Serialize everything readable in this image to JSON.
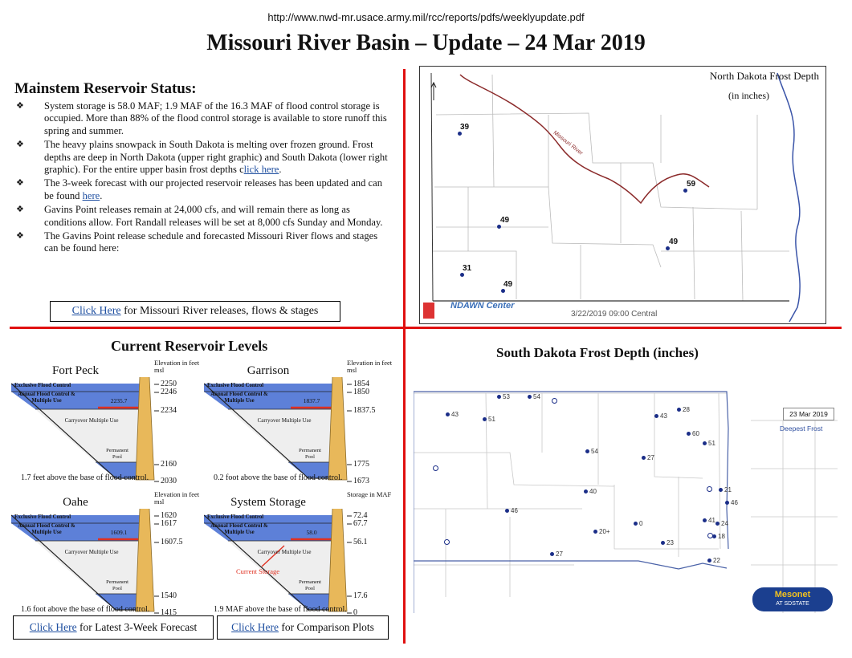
{
  "header": {
    "url": "http://www.nwd-mr.usace.army.mil/rcc/reports/pdfs/weeklyupdate.pdf",
    "title": "Missouri River Basin – Update – 24 Mar 2019"
  },
  "status": {
    "heading": "Mainstem Reservoir Status:",
    "bullets": [
      {
        "text": "System storage is 58.0 MAF; 1.9 MAF of the 16.3 MAF of flood control storage is occupied. More than 88% of the flood control storage is available to store runoff this spring and summer."
      },
      {
        "pre": "The heavy plains snowpack in South Dakota is melting over frozen ground.  Frost depths are deep in North Dakota (upper right graphic) and  South Dakota (lower right graphic).  For the entire upper basin frost depths c",
        "link": "lick here",
        "post": "."
      },
      {
        "pre": "The 3-week forecast with our projected reservoir releases has been updated and can be found ",
        "link": "here",
        "post": "."
      },
      {
        "text": "Gavins Point releases remain at 24,000 cfs, and will remain there as long as conditions allow. Fort Randall releases will be set at 8,000 cfs Sunday and Monday."
      },
      {
        "text": "The Gavins Point release schedule and forecasted Missouri River flows and stages can be found here:"
      }
    ],
    "releases_link": "Click Here",
    "releases_text": " for Missouri River releases, flows & stages"
  },
  "nd_map": {
    "title": "North Dakota Frost Depth",
    "subtitle": "(in inches)",
    "river": "Missouri River",
    "footer": "3/22/2019 09:00 Central",
    "logo": "NDAWN Center",
    "points": [
      "39",
      "59",
      "49",
      "49",
      "31",
      "49"
    ]
  },
  "levels": {
    "heading": "Current Reservoir Levels",
    "zones": {
      "excl": "Exclusive Flood Control",
      "annual": "Annual Flood Control & Multiple Use",
      "carry": "Carryover Multiple Use",
      "perm": "Permanent Pool",
      "current": "Current Storage"
    },
    "reservoirs": [
      {
        "name": "Fort Peck",
        "unit": "Elevation in feet msl",
        "ticks": [
          "2250",
          "2246",
          "2234",
          "2160",
          "2030"
        ],
        "current": "2235.7",
        "note": "1.7 feet above the base of flood control."
      },
      {
        "name": "Garrison",
        "unit": "Elevation in feet msl",
        "ticks": [
          "1854",
          "1850",
          "1837.5",
          "1775",
          "1673"
        ],
        "current": "1837.7",
        "note": "0.2 foot above the base of flood control."
      },
      {
        "name": "Oahe",
        "unit": "Elevation in feet msl",
        "ticks": [
          "1620",
          "1617",
          "1607.5",
          "1540",
          "1415"
        ],
        "current": "1609.1",
        "note": "1.6 foot above the base of flood control."
      },
      {
        "name": "System Storage",
        "unit": "Storage in MAF",
        "ticks": [
          "72.4",
          "67.7",
          "56.1",
          "17.6",
          "0"
        ],
        "current": "58.0",
        "note": "1.9 MAF above the base of flood control."
      }
    ],
    "forecast_link": "Click Here",
    "forecast_text": " for Latest 3-Week Forecast",
    "comparison_link": "Click Here",
    "comparison_text": " for Comparison Plots"
  },
  "sd_map": {
    "title": "South Dakota Frost Depth (inches)",
    "date": "23 Mar 2019",
    "legend": "Deepest Frost",
    "logo_top": "Mesonet",
    "logo_bottom": "AT SDSTATE",
    "points": [
      "53",
      "54",
      "43",
      "51",
      "43",
      "28",
      "60",
      "51",
      "54",
      "27",
      "40",
      "21",
      "46",
      "46",
      "41",
      "24",
      "0",
      "20+",
      "18",
      "23",
      "27",
      "22"
    ]
  },
  "colors": {
    "accent_red": "#e01010",
    "water_blue": "#5d80d8",
    "link_blue": "#1f4fa0",
    "dot_blue": "#1b2e88"
  }
}
